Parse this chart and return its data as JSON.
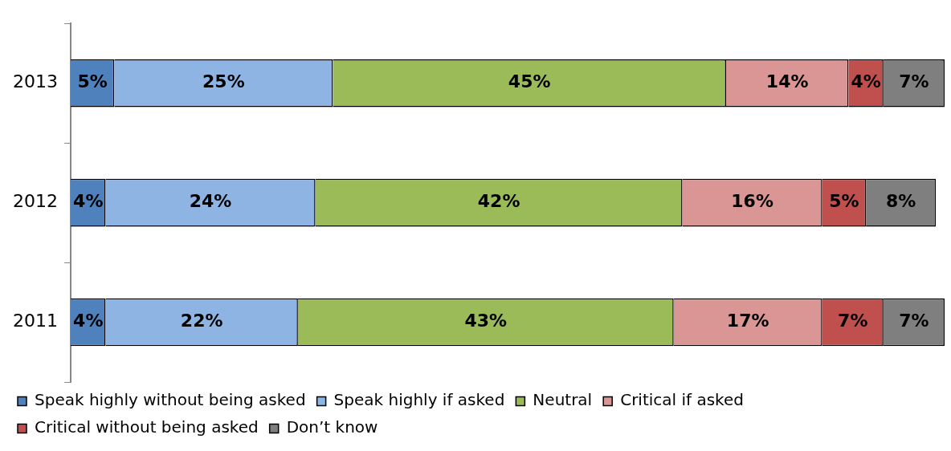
{
  "chart_data": {
    "type": "bar",
    "orientation": "horizontal",
    "stacked": true,
    "categories": [
      "2013",
      "2012",
      "2011"
    ],
    "xlim": [
      0,
      100
    ],
    "tick_labels": "y",
    "grid": false,
    "legend": "bottom",
    "series": [
      {
        "name": "Speak highly without being asked",
        "color": "#4f81bd",
        "values": [
          5,
          4,
          4
        ],
        "value_labels": [
          "5%",
          "4%",
          "4%"
        ]
      },
      {
        "name": "Speak highly if asked",
        "color": "#8eb4e3",
        "values": [
          25,
          24,
          22
        ],
        "value_labels": [
          "25%",
          "24%",
          "22%"
        ]
      },
      {
        "name": "Neutral",
        "color": "#9bbb59",
        "values": [
          45,
          42,
          43
        ],
        "value_labels": [
          "45%",
          "42%",
          "43%"
        ]
      },
      {
        "name": "Critical if asked",
        "color": "#d99694",
        "values": [
          14,
          16,
          17
        ],
        "value_labels": [
          "14%",
          "16%",
          "17%"
        ]
      },
      {
        "name": "Critical without being asked",
        "color": "#c0504d",
        "values": [
          4,
          5,
          7
        ],
        "value_labels": [
          "4%",
          "5%",
          "7%"
        ]
      },
      {
        "name": "Don’t know",
        "color": "#7f7f7f",
        "values": [
          7,
          8,
          7
        ],
        "value_labels": [
          "7%",
          "8%",
          "7%"
        ]
      }
    ]
  }
}
